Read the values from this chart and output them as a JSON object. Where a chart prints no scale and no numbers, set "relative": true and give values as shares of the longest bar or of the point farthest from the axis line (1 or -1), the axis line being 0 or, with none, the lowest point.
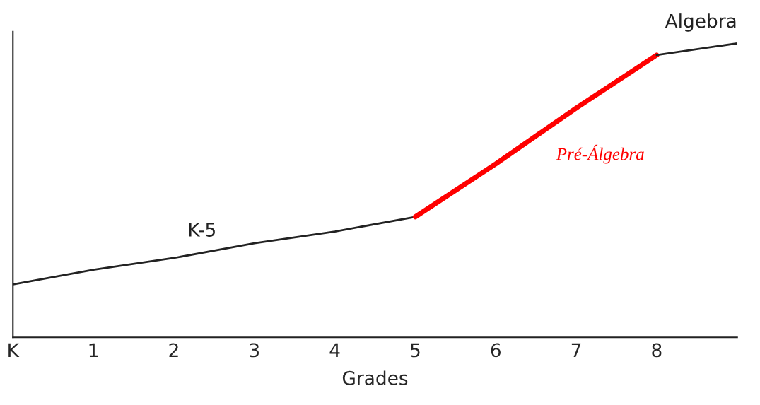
{
  "chart_data": {
    "type": "line",
    "relative": true,
    "xlabel": "Grades",
    "categories": [
      "K",
      "1",
      "2",
      "3",
      "4",
      "5",
      "6",
      "7",
      "8",
      null
    ],
    "series": [
      {
        "name": "K-5",
        "color": "#222222",
        "values": [
          0.18,
          0.23,
          0.27,
          0.32,
          0.36,
          0.41,
          null,
          null,
          null,
          null
        ]
      },
      {
        "name": "Pré-Álgebra",
        "color": "#ff0000",
        "values": [
          null,
          null,
          null,
          null,
          null,
          0.41,
          0.59,
          0.78,
          0.96,
          null
        ]
      },
      {
        "name": "Algebra",
        "color": "#222222",
        "values": [
          null,
          null,
          null,
          null,
          null,
          null,
          null,
          null,
          0.96,
          1
        ]
      }
    ],
    "grid": false,
    "legend": false,
    "tick_labels": "x"
  }
}
